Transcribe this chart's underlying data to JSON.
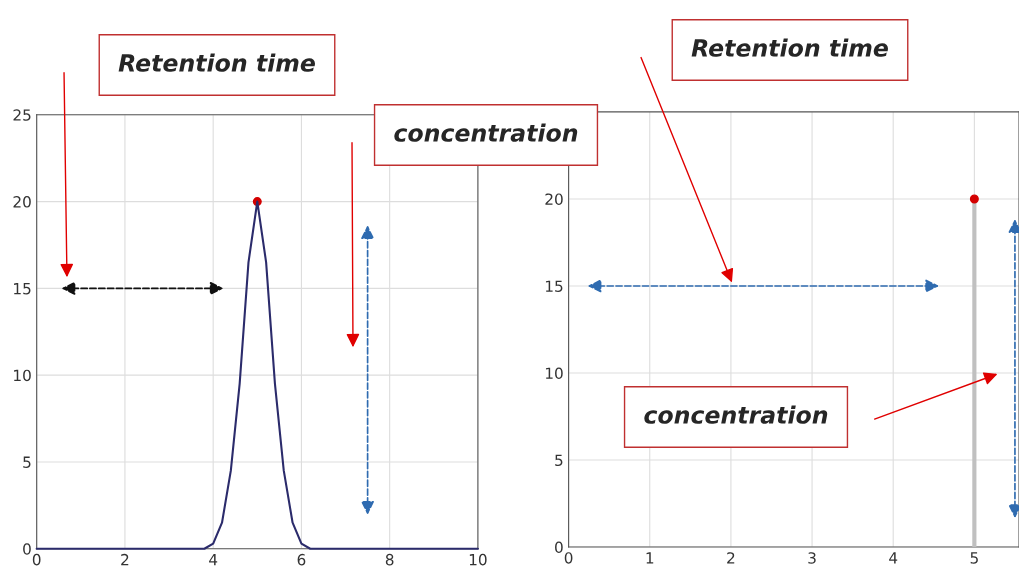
{
  "chart_data": [
    {
      "type": "line",
      "x": [
        0,
        1,
        2,
        3,
        3.8,
        4.0,
        4.2,
        4.4,
        4.6,
        4.8,
        5.0,
        5.2,
        5.4,
        5.6,
        5.8,
        6.0,
        6.2,
        7,
        8,
        9,
        10
      ],
      "series": [
        {
          "color": "#2b2b6b",
          "values": [
            0,
            0,
            0,
            0,
            0,
            0.3,
            1.5,
            4.5,
            9.5,
            16.5,
            20,
            16.5,
            9.5,
            4.5,
            1.5,
            0.3,
            0,
            0,
            0,
            0,
            0
          ]
        },
        {
          "type": "scatter",
          "color": "#d40000",
          "x": [
            5
          ],
          "values": [
            20
          ],
          "marker": "circle"
        }
      ],
      "xlim": [
        0,
        10
      ],
      "xticks": [
        0,
        2,
        4,
        6,
        8,
        10
      ],
      "ylim": [
        0,
        25
      ],
      "yticks": [
        0,
        5,
        10,
        15,
        20,
        25
      ],
      "grid": true,
      "annotations": [
        "Retention time",
        "concentration"
      ]
    },
    {
      "type": "lollipop",
      "x": [
        5
      ],
      "series": [
        {
          "color": "#c0c0c0",
          "colors": [
            "#d40000"
          ],
          "values": [
            20
          ]
        }
      ],
      "xlim": [
        0,
        5.55
      ],
      "xticks": [
        0,
        1,
        2,
        3,
        4,
        5
      ],
      "ylim": [
        0,
        25
      ],
      "yticks": [
        0,
        5,
        10,
        15,
        20
      ],
      "grid": true,
      "annotations": [
        "Retention time",
        "concentration"
      ]
    }
  ]
}
